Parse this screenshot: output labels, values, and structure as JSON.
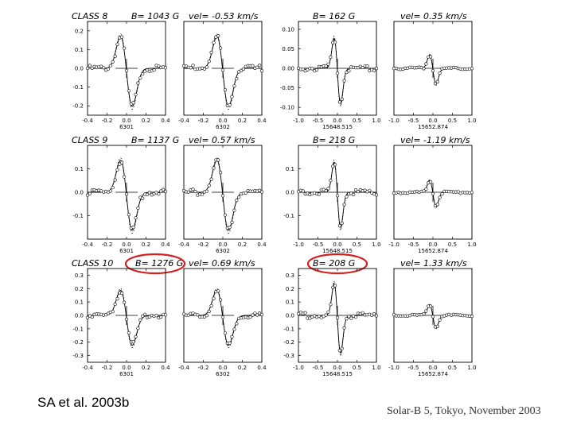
{
  "citation": "SA et al. 2003b",
  "footer": "Solar-B 5, Tokyo, November 2003",
  "highlight_color": "#d62020",
  "rows": [
    {
      "header_left": "CLASS 8",
      "header_field": "B= 1043 G",
      "header_vel": "vel= -0.53 km/s",
      "header_field2": "B= 162 G",
      "header_vel2": "vel= 0.35 km/s"
    },
    {
      "header_left": "CLASS 9",
      "header_field": "B= 1137 G",
      "header_vel": "vel= 0.57 km/s",
      "header_field2": "B= 218 G",
      "header_vel2": "vel= -1.19 km/s"
    },
    {
      "header_left": "CLASS 10",
      "header_field": "B= 1276 G",
      "header_vel": "vel= 0.69 km/s",
      "header_field2": "B= 208 G",
      "header_vel2": "vel= 1.33 km/s"
    }
  ],
  "chart_data": [
    {
      "type": "line",
      "row": 0,
      "col": 0,
      "xlabel": "6301",
      "xticks": [
        "-0.4",
        "-0.2",
        "0.0",
        "0.2",
        "0.4"
      ],
      "yticks": [
        "0.2",
        "0.1",
        "0.0",
        "-0.1",
        "-0.2"
      ],
      "xlim": [
        -0.4,
        0.4
      ],
      "ylim": [
        -0.25,
        0.25
      ],
      "amp": 0.2,
      "series": [
        {
          "name": "observed (circles)"
        },
        {
          "name": "fit (line)"
        }
      ]
    },
    {
      "type": "line",
      "row": 0,
      "col": 1,
      "xlabel": "6302",
      "xticks": [
        "-0.4",
        "-0.2",
        "0.0",
        "0.2",
        "0.4"
      ],
      "yticks": [],
      "xlim": [
        -0.4,
        0.4
      ],
      "ylim": [
        -0.25,
        0.25
      ],
      "amp": 0.2,
      "series": [
        {
          "name": "observed (circles)"
        },
        {
          "name": "fit (line)"
        }
      ]
    },
    {
      "type": "line",
      "row": 0,
      "col": 2,
      "xlabel": "15648.515",
      "xticks": [
        "-1.0",
        "-0.5",
        "0.0",
        "0.5",
        "1.0"
      ],
      "yticks": [
        "0.10",
        "0.05",
        "0.00",
        "-0.05",
        "-0.10"
      ],
      "xlim": [
        -1.0,
        1.0
      ],
      "ylim": [
        -0.12,
        0.12
      ],
      "amp": 0.09,
      "series": [
        {
          "name": "observed (circles)"
        },
        {
          "name": "fit (line)"
        }
      ]
    },
    {
      "type": "line",
      "row": 0,
      "col": 3,
      "xlabel": "15652.874",
      "xticks": [
        "-1.0",
        "-0.5",
        "0.0",
        "0.5",
        "1.0"
      ],
      "yticks": [],
      "xlim": [
        -1.0,
        1.0
      ],
      "ylim": [
        -0.12,
        0.12
      ],
      "amp": 0.04,
      "series": [
        {
          "name": "observed (circles)"
        },
        {
          "name": "fit (line)"
        }
      ]
    },
    {
      "type": "line",
      "row": 1,
      "col": 0,
      "xlabel": "6301",
      "xticks": [
        "-0.4",
        "-0.2",
        "0.0",
        "0.2",
        "0.4"
      ],
      "yticks": [
        "0.1",
        "0.0",
        "-0.1"
      ],
      "xlim": [
        -0.4,
        0.4
      ],
      "ylim": [
        -0.2,
        0.2
      ],
      "amp": 0.16,
      "series": [
        {
          "name": "observed (circles)"
        },
        {
          "name": "fit (line)"
        }
      ]
    },
    {
      "type": "line",
      "row": 1,
      "col": 1,
      "xlabel": "6302",
      "xticks": [
        "-0.4",
        "-0.2",
        "0.0",
        "0.2",
        "0.4"
      ],
      "yticks": [],
      "xlim": [
        -0.4,
        0.4
      ],
      "ylim": [
        -0.2,
        0.2
      ],
      "amp": 0.16,
      "series": [
        {
          "name": "observed (circles)"
        },
        {
          "name": "fit (line)"
        }
      ]
    },
    {
      "type": "line",
      "row": 1,
      "col": 2,
      "xlabel": "15648.515",
      "xticks": [
        "-1.0",
        "-0.5",
        "0.0",
        "0.5",
        "1.0"
      ],
      "yticks": [
        "0.1",
        "0.0",
        "-0.1"
      ],
      "xlim": [
        -1.0,
        1.0
      ],
      "ylim": [
        -0.2,
        0.2
      ],
      "amp": 0.15,
      "series": [
        {
          "name": "observed (circles)"
        },
        {
          "name": "fit (line)"
        }
      ]
    },
    {
      "type": "line",
      "row": 1,
      "col": 3,
      "xlabel": "15652.874",
      "xticks": [
        "-1.0",
        "-0.5",
        "0.0",
        "0.5",
        "1.0"
      ],
      "yticks": [],
      "xlim": [
        -1.0,
        1.0
      ],
      "ylim": [
        -0.2,
        0.2
      ],
      "amp": 0.06,
      "series": [
        {
          "name": "observed (circles)"
        },
        {
          "name": "fit (line)"
        }
      ]
    },
    {
      "type": "line",
      "row": 2,
      "col": 0,
      "xlabel": "6301",
      "xticks": [
        "-0.4",
        "-0.2",
        "0.0",
        "0.2",
        "0.4"
      ],
      "yticks": [
        "0.3",
        "0.2",
        "0.1",
        "0.0",
        "-0.1",
        "-0.2",
        "-0.3"
      ],
      "xlim": [
        -0.4,
        0.4
      ],
      "ylim": [
        -0.35,
        0.35
      ],
      "amp": 0.22,
      "series": [
        {
          "name": "observed (circles)"
        },
        {
          "name": "fit (line)"
        }
      ]
    },
    {
      "type": "line",
      "row": 2,
      "col": 1,
      "xlabel": "6302",
      "xticks": [
        "-0.4",
        "-0.2",
        "0.0",
        "0.2",
        "0.4"
      ],
      "yticks": [],
      "xlim": [
        -0.4,
        0.4
      ],
      "ylim": [
        -0.35,
        0.35
      ],
      "amp": 0.22,
      "series": [
        {
          "name": "observed (circles)"
        },
        {
          "name": "fit (line)"
        }
      ]
    },
    {
      "type": "line",
      "row": 2,
      "col": 2,
      "xlabel": "15648.515",
      "xticks": [
        "-1.0",
        "-0.5",
        "0.0",
        "0.5",
        "1.0"
      ],
      "yticks": [
        "0.3",
        "0.2",
        "0.1",
        "0.0",
        "-0.1",
        "-0.2",
        "-0.3"
      ],
      "xlim": [
        -1.0,
        1.0
      ],
      "ylim": [
        -0.35,
        0.35
      ],
      "amp": 0.28,
      "series": [
        {
          "name": "observed (circles)"
        },
        {
          "name": "fit (line)"
        }
      ]
    },
    {
      "type": "line",
      "row": 2,
      "col": 3,
      "xlabel": "15652.874",
      "xticks": [
        "-1.0",
        "-0.5",
        "0.0",
        "0.5",
        "1.0"
      ],
      "yticks": [],
      "xlim": [
        -1.0,
        1.0
      ],
      "ylim": [
        -0.35,
        0.35
      ],
      "amp": 0.09,
      "series": [
        {
          "name": "observed (circles)"
        },
        {
          "name": "fit (line)"
        }
      ]
    }
  ]
}
